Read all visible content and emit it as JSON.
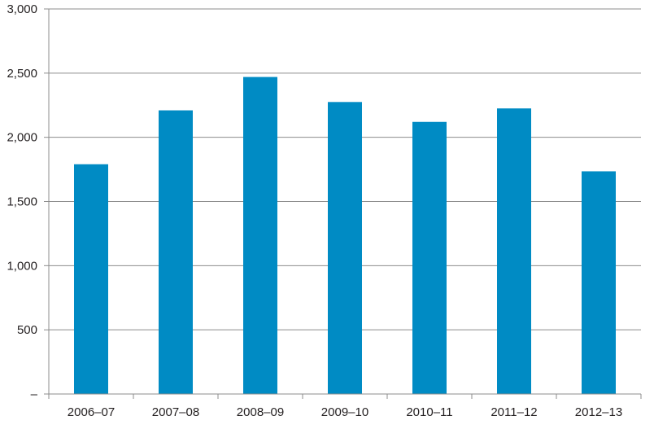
{
  "chart_data": {
    "type": "bar",
    "categories": [
      "2006–07",
      "2007–08",
      "2008–09",
      "2009–10",
      "2010–11",
      "2011–12",
      "2012–13"
    ],
    "values": [
      1790,
      2210,
      2470,
      2275,
      2120,
      2225,
      1735
    ],
    "ylim": [
      0,
      3000
    ],
    "yticks": [
      0,
      500,
      1000,
      1500,
      2000,
      2500,
      3000
    ],
    "ytick_labels": [
      "–",
      "500",
      "1,000",
      "1,500",
      "2,000",
      "2,500",
      "3,000"
    ],
    "title": "",
    "xlabel": "",
    "ylabel": "",
    "grid": true,
    "legend": "none",
    "colors": {
      "bar": "#008bc4",
      "grid": "#8c8c8c",
      "axis": "#8c8c8c",
      "text": "#231f20"
    }
  }
}
